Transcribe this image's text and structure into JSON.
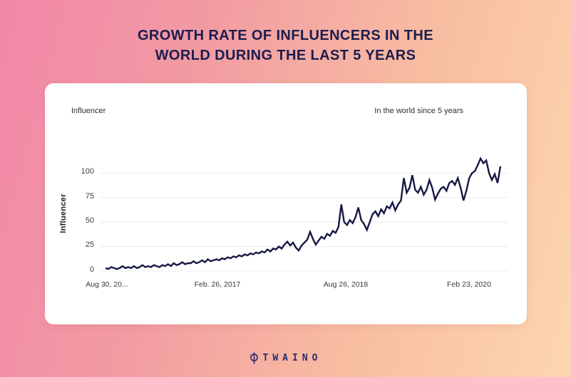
{
  "page": {
    "title_line1": "GROWTH RATE OF INFLUENCERS IN THE",
    "title_line2": "WORLD DURING THE LAST 5 YEARS",
    "colors": {
      "background_top_left": "#f287a9",
      "background_bottom_right": "#fdd6ae",
      "title": "#1b1d4f",
      "card": "#ffffff",
      "grid": "#ececec",
      "line": "#161944",
      "brand": "#2b2d6e"
    },
    "brand": {
      "icon": "magnifier-icon",
      "name": "TWAINO"
    }
  },
  "chart_data": {
    "type": "line",
    "title_left": "Influencer",
    "title_right": "In the world since 5 years",
    "ylabel": "Influencer",
    "xlabel": "",
    "grid": true,
    "legend_position": "none",
    "line_color": "#161944",
    "ylim": [
      0,
      120
    ],
    "y_ticks": [
      0,
      25,
      50,
      75,
      100
    ],
    "x_tick_labels": [
      "Aug 30, 20...",
      "Feb. 26, 2017",
      "Aug 26, 2018",
      "Feb 23, 2020"
    ],
    "series": [
      {
        "name": "Influencer",
        "values": [
          3,
          2,
          4,
          3,
          2,
          3,
          5,
          3,
          4,
          3,
          5,
          3,
          4,
          6,
          4,
          5,
          4,
          6,
          5,
          4,
          6,
          5,
          7,
          5,
          8,
          6,
          7,
          9,
          7,
          8,
          8,
          10,
          8,
          9,
          11,
          9,
          12,
          10,
          11,
          12,
          11,
          13,
          12,
          14,
          13,
          15,
          14,
          16,
          15,
          17,
          16,
          18,
          17,
          19,
          18,
          20,
          19,
          22,
          20,
          23,
          22,
          25,
          23,
          27,
          30,
          26,
          29,
          24,
          21,
          26,
          29,
          32,
          40,
          33,
          27,
          31,
          35,
          33,
          38,
          36,
          41,
          39,
          45,
          68,
          50,
          47,
          52,
          49,
          55,
          65,
          52,
          48,
          42,
          50,
          58,
          61,
          56,
          63,
          59,
          66,
          64,
          70,
          62,
          68,
          72,
          95,
          80,
          85,
          98,
          83,
          80,
          86,
          78,
          83,
          93,
          85,
          73,
          79,
          84,
          86,
          82,
          90,
          92,
          88,
          95,
          85,
          72,
          82,
          95,
          100,
          102,
          108,
          115,
          110,
          113,
          100,
          93,
          99,
          90,
          107
        ]
      }
    ]
  }
}
